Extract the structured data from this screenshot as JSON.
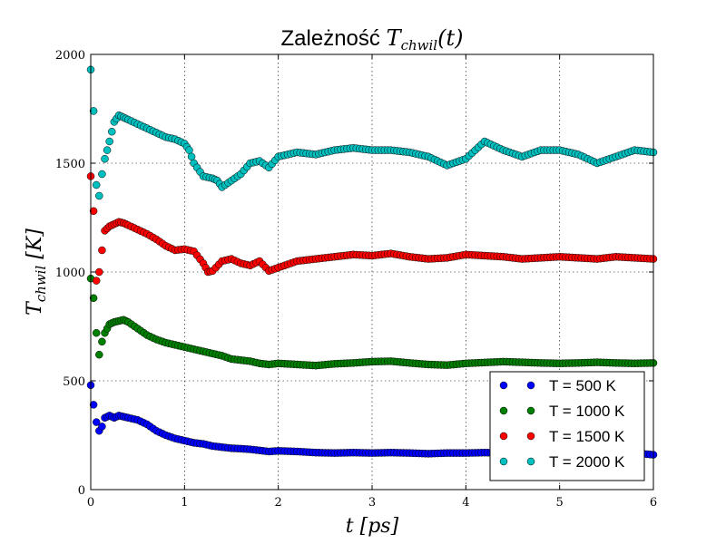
{
  "chart_data": {
    "type": "scatter",
    "title_text": "Zależność",
    "title_math_main": "T",
    "title_math_sub": "chwil",
    "title_math_arg": "(t)",
    "xlabel_main": "t",
    "xlabel_unit": "[ps]",
    "ylabel_main": "T",
    "ylabel_sub": "chwil",
    "ylabel_unit": "[K]",
    "xlim": [
      0,
      6
    ],
    "ylim": [
      0,
      2000
    ],
    "grid": true,
    "legend_position": "lower right",
    "x_ticks": [
      "0",
      "1",
      "2",
      "3",
      "4",
      "5",
      "6"
    ],
    "y_ticks": [
      "0",
      "500",
      "1000",
      "1500",
      "2000"
    ],
    "series": [
      {
        "name": "T = 500 K",
        "color": "#0000ff",
        "x": [
          0.0,
          0.03,
          0.06,
          0.09,
          0.12,
          0.15,
          0.2,
          0.25,
          0.3,
          0.35,
          0.4,
          0.5,
          0.6,
          0.7,
          0.8,
          0.9,
          1.0,
          1.1,
          1.2,
          1.3,
          1.4,
          1.5,
          1.6,
          1.7,
          1.8,
          1.9,
          2.0,
          2.2,
          2.4,
          2.6,
          2.8,
          3.0,
          3.2,
          3.4,
          3.6,
          3.8,
          4.0,
          4.2,
          4.4,
          4.6,
          4.8,
          5.0,
          5.2,
          5.4,
          5.6,
          5.8,
          6.0
        ],
        "y": [
          480,
          390,
          310,
          270,
          290,
          330,
          340,
          330,
          340,
          335,
          330,
          320,
          300,
          270,
          250,
          235,
          225,
          215,
          210,
          200,
          195,
          190,
          188,
          185,
          180,
          175,
          178,
          175,
          170,
          168,
          170,
          168,
          170,
          168,
          165,
          168,
          168,
          170,
          168,
          165,
          168,
          165,
          168,
          170,
          165,
          168,
          160
        ]
      },
      {
        "name": "T = 1000 K",
        "color": "#008000",
        "x": [
          0.0,
          0.03,
          0.06,
          0.09,
          0.12,
          0.15,
          0.2,
          0.25,
          0.3,
          0.35,
          0.4,
          0.5,
          0.6,
          0.7,
          0.8,
          0.9,
          1.0,
          1.1,
          1.2,
          1.3,
          1.4,
          1.5,
          1.6,
          1.7,
          1.8,
          1.9,
          2.0,
          2.2,
          2.4,
          2.6,
          2.8,
          3.0,
          3.2,
          3.4,
          3.6,
          3.8,
          4.0,
          4.2,
          4.4,
          4.6,
          4.8,
          5.0,
          5.2,
          5.4,
          5.6,
          5.8,
          6.0
        ],
        "y": [
          970,
          880,
          720,
          620,
          680,
          720,
          760,
          770,
          775,
          780,
          770,
          740,
          710,
          690,
          675,
          665,
          655,
          645,
          635,
          625,
          615,
          600,
          595,
          590,
          580,
          575,
          580,
          575,
          570,
          578,
          582,
          588,
          590,
          582,
          575,
          572,
          580,
          584,
          588,
          585,
          582,
          580,
          582,
          585,
          582,
          580,
          582
        ]
      },
      {
        "name": "T = 1500 K",
        "color": "#ff0000",
        "x": [
          0.0,
          0.03,
          0.06,
          0.09,
          0.12,
          0.15,
          0.2,
          0.25,
          0.3,
          0.35,
          0.4,
          0.5,
          0.6,
          0.7,
          0.8,
          0.9,
          1.0,
          1.1,
          1.2,
          1.25,
          1.3,
          1.4,
          1.5,
          1.6,
          1.7,
          1.8,
          1.9,
          2.0,
          2.2,
          2.4,
          2.6,
          2.8,
          3.0,
          3.2,
          3.4,
          3.6,
          3.8,
          4.0,
          4.2,
          4.4,
          4.6,
          4.8,
          5.0,
          5.2,
          5.4,
          5.6,
          5.8,
          6.0
        ],
        "y": [
          1440,
          1280,
          960,
          1000,
          1100,
          1190,
          1210,
          1220,
          1230,
          1225,
          1215,
          1195,
          1175,
          1150,
          1120,
          1100,
          1105,
          1095,
          1040,
          1000,
          1005,
          1050,
          1060,
          1040,
          1030,
          1050,
          1005,
          1020,
          1050,
          1060,
          1070,
          1080,
          1075,
          1085,
          1070,
          1060,
          1065,
          1080,
          1075,
          1070,
          1060,
          1065,
          1070,
          1065,
          1060,
          1070,
          1065,
          1060
        ]
      },
      {
        "name": "T = 2000 K",
        "color": "#00bfbf",
        "x": [
          0.0,
          0.03,
          0.06,
          0.09,
          0.12,
          0.15,
          0.2,
          0.25,
          0.3,
          0.35,
          0.4,
          0.5,
          0.6,
          0.7,
          0.8,
          0.9,
          1.0,
          1.05,
          1.1,
          1.2,
          1.3,
          1.35,
          1.4,
          1.5,
          1.6,
          1.7,
          1.8,
          1.9,
          2.0,
          2.2,
          2.4,
          2.6,
          2.8,
          3.0,
          3.2,
          3.4,
          3.6,
          3.8,
          4.0,
          4.2,
          4.4,
          4.6,
          4.8,
          5.0,
          5.2,
          5.4,
          5.6,
          5.8,
          6.0
        ],
        "y": [
          1930,
          1740,
          1400,
          1350,
          1450,
          1520,
          1600,
          1690,
          1720,
          1710,
          1700,
          1680,
          1660,
          1640,
          1620,
          1610,
          1590,
          1560,
          1500,
          1440,
          1430,
          1420,
          1390,
          1420,
          1450,
          1500,
          1510,
          1480,
          1530,
          1550,
          1540,
          1560,
          1570,
          1560,
          1560,
          1550,
          1530,
          1490,
          1520,
          1600,
          1560,
          1530,
          1560,
          1560,
          1540,
          1500,
          1530,
          1560,
          1550
        ]
      }
    ]
  }
}
